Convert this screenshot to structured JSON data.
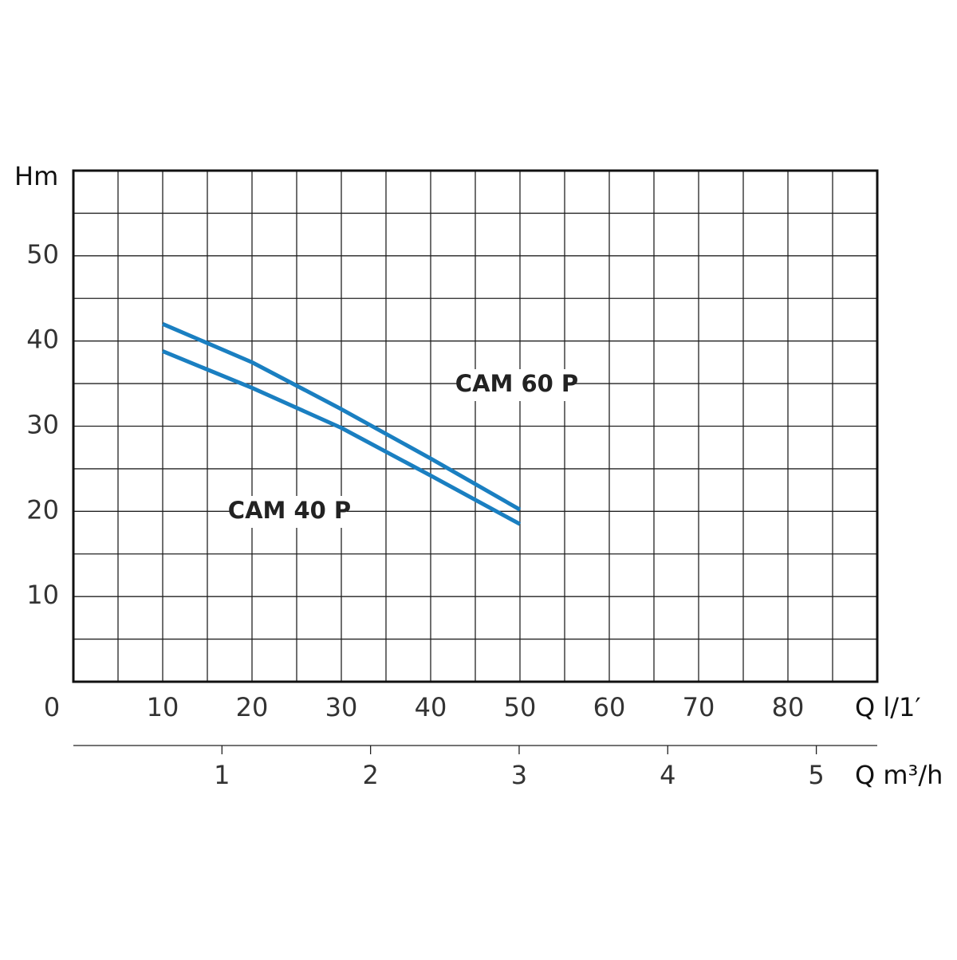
{
  "chart_data": {
    "type": "line",
    "y_label": "Hm",
    "x_label": "Q l/1′",
    "x2_label": "Q m³/h",
    "x": [
      10,
      20,
      30,
      40,
      50
    ],
    "series": [
      {
        "name": "CAM 60 P",
        "color": "#1a7fc1",
        "values": [
          42,
          37.5,
          32,
          26.2,
          20.2
        ]
      },
      {
        "name": "CAM 40 P",
        "color": "#1a7fc1",
        "values": [
          38.8,
          34.5,
          29.8,
          24.2,
          18.5
        ]
      }
    ],
    "xlim": [
      0,
      90
    ],
    "xticks": [
      0,
      10,
      20,
      30,
      40,
      50,
      60,
      70,
      80
    ],
    "ylim": [
      0,
      60
    ],
    "yticks": [
      10,
      20,
      30,
      40,
      50
    ],
    "x2lim": [
      0,
      5.41
    ],
    "x2ticks": [
      1,
      2,
      3,
      4,
      5
    ],
    "grid": true
  }
}
